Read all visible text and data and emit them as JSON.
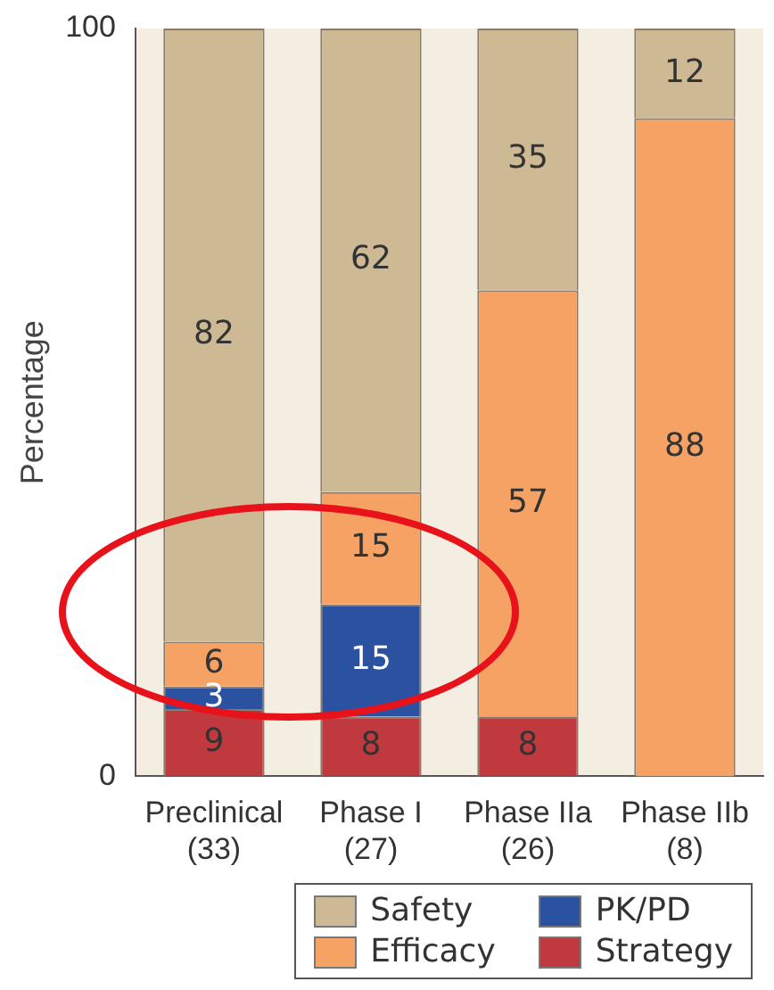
{
  "chart_data": {
    "type": "bar",
    "stacked": true,
    "ylabel": "Percentage",
    "categories": [
      "Preclinical\n(33)",
      "Phase I\n(27)",
      "Phase IIa\n(26)",
      "Phase IIb\n(8)"
    ],
    "series": [
      {
        "name": "Strategy",
        "color": "#c0393f",
        "values": [
          9,
          8,
          8,
          null
        ]
      },
      {
        "name": "PK/PD",
        "color": "#2b52a0",
        "values": [
          3,
          15,
          null,
          null
        ]
      },
      {
        "name": "Efficacy",
        "color": "#f5a264",
        "values": [
          6,
          15,
          57,
          88
        ]
      },
      {
        "name": "Safety",
        "color": "#cdb994",
        "values": [
          82,
          62,
          35,
          12
        ]
      }
    ],
    "ylim": [
      0,
      100
    ],
    "yticks": [
      0,
      100
    ],
    "data_labels": true,
    "legend": "bottom right",
    "grid": false
  }
}
